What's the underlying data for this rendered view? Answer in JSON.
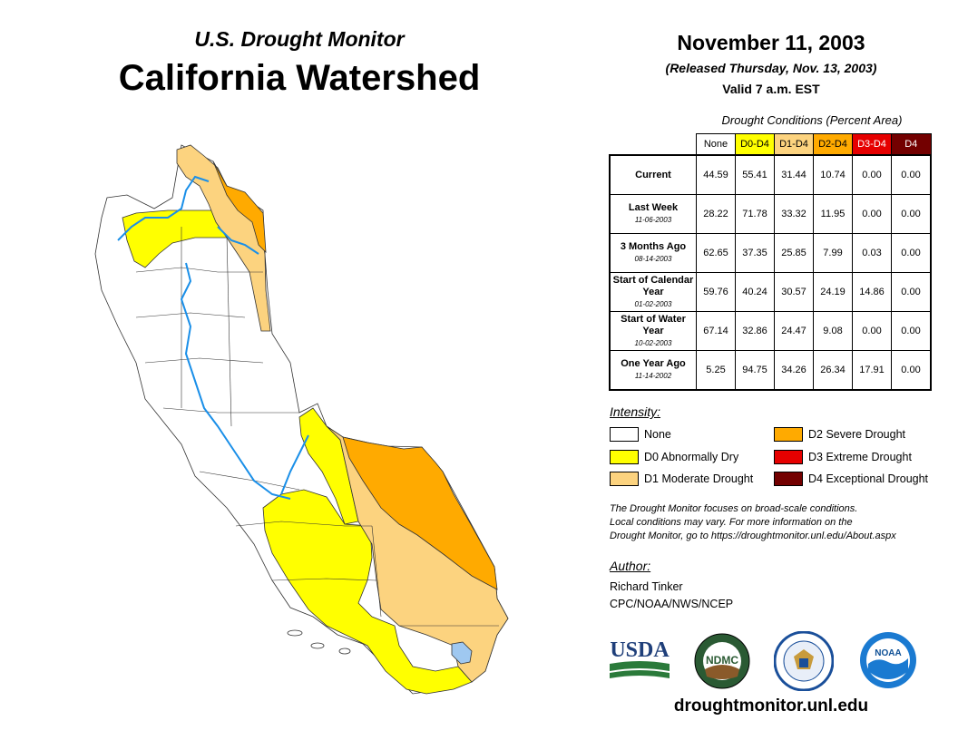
{
  "header": {
    "subtitle": "U.S. Drought Monitor",
    "title": "California Watershed",
    "date": "November 11, 2003",
    "released": "(Released Thursday, Nov. 13, 2003)",
    "valid": "Valid 7 a.m. EST"
  },
  "table": {
    "caption": "Drought Conditions (Percent Area)",
    "columns": [
      "None",
      "D0-D4",
      "D1-D4",
      "D2-D4",
      "D3-D4",
      "D4"
    ],
    "column_colors": [
      "#ffffff",
      "#ffff00",
      "#fcd37f",
      "#ffaa00",
      "#e60000",
      "#730000"
    ],
    "rows": [
      {
        "label": "Current",
        "date": "",
        "values": [
          "44.59",
          "55.41",
          "31.44",
          "10.74",
          "0.00",
          "0.00"
        ]
      },
      {
        "label": "Last Week",
        "date": "11-06-2003",
        "values": [
          "28.22",
          "71.78",
          "33.32",
          "11.95",
          "0.00",
          "0.00"
        ]
      },
      {
        "label": "3 Months Ago",
        "date": "08-14-2003",
        "values": [
          "62.65",
          "37.35",
          "25.85",
          "7.99",
          "0.03",
          "0.00"
        ]
      },
      {
        "label": "Start of Calendar Year",
        "date": "01-02-2003",
        "values": [
          "59.76",
          "40.24",
          "30.57",
          "24.19",
          "14.86",
          "0.00"
        ]
      },
      {
        "label": "Start of Water Year",
        "date": "10-02-2003",
        "values": [
          "67.14",
          "32.86",
          "24.47",
          "9.08",
          "0.00",
          "0.00"
        ]
      },
      {
        "label": "One Year Ago",
        "date": "11-14-2002",
        "values": [
          "5.25",
          "94.75",
          "34.26",
          "26.34",
          "17.91",
          "0.00"
        ]
      }
    ]
  },
  "legend": {
    "title": "Intensity:",
    "items": [
      {
        "label": "None",
        "color": "#ffffff"
      },
      {
        "label": "D0 Abnormally Dry",
        "color": "#ffff00"
      },
      {
        "label": "D1 Moderate Drought",
        "color": "#fcd37f"
      },
      {
        "label": "D2 Severe Drought",
        "color": "#ffaa00"
      },
      {
        "label": "D3 Extreme Drought",
        "color": "#e60000"
      },
      {
        "label": "D4 Exceptional Drought",
        "color": "#730000"
      }
    ]
  },
  "note": {
    "line1": "The Drought Monitor focuses on broad-scale conditions.",
    "line2": "Local conditions may vary. For more information on the",
    "line3": "Drought Monitor, go to https://droughtmonitor.unl.edu/About.aspx"
  },
  "author": {
    "heading": "Author:",
    "name": "Richard Tinker",
    "org": "CPC/NOAA/NWS/NCEP"
  },
  "logos": {
    "usda": "USDA",
    "ndmc": "NDMC",
    "noaa": "NOAA"
  },
  "footer": {
    "website": "droughtmonitor.unl.edu"
  }
}
